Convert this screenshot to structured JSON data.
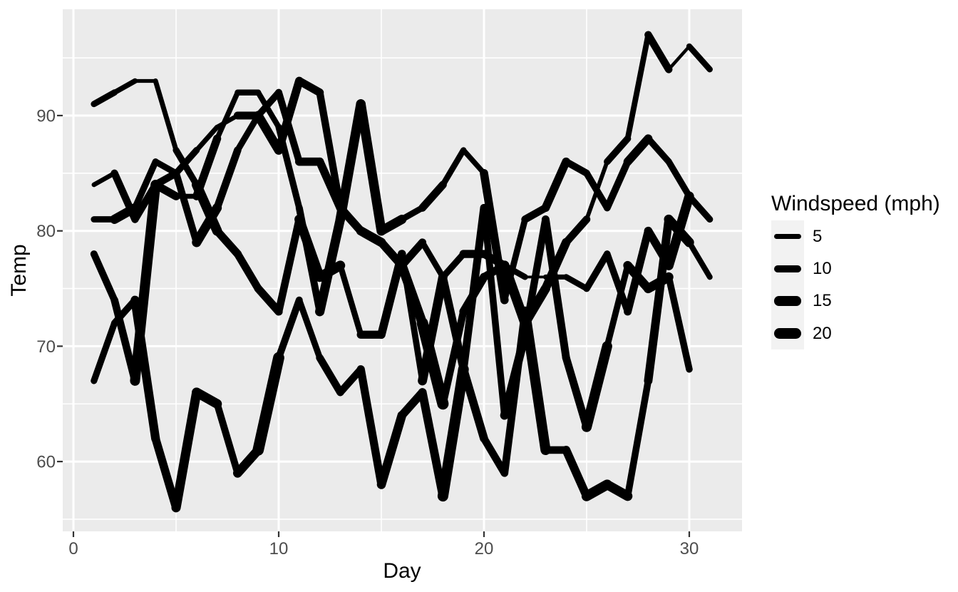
{
  "colors": {
    "background": "#FFFFFF",
    "panel_bg": "#EBEBEB",
    "grid": "#FFFFFF",
    "line": "#000000",
    "axis_text": "#4D4D4D",
    "tick_mark": "#333333",
    "legend_key_bg": "#F2F2F2"
  },
  "chart_data": {
    "type": "line",
    "title": "",
    "xlabel": "Day",
    "ylabel": "Temp",
    "x_ticks": [
      0,
      10,
      20,
      30
    ],
    "x_minor": [
      5,
      15,
      25
    ],
    "y_ticks": [
      60,
      70,
      80,
      90
    ],
    "y_minor": [
      55,
      65,
      75,
      85,
      95
    ],
    "xlim": [
      -0.52,
      32.57
    ],
    "ylim": [
      53.9,
      99.2
    ],
    "grid": true,
    "legend": {
      "title": "Windspeed (mph)",
      "position": "right",
      "entries": [
        5,
        10,
        15,
        20
      ]
    },
    "size_aesthetic": "windspeed_mph",
    "size_domain": [
      1.7,
      20.7
    ],
    "series": [
      {
        "name": "line-1",
        "day_start": 1,
        "temps": [
          67,
          72,
          74,
          62,
          56,
          66,
          65,
          59,
          61,
          69,
          74,
          69,
          66,
          68,
          58,
          64,
          66,
          57,
          68,
          62,
          59,
          73,
          61,
          61,
          57,
          58,
          57,
          67,
          81,
          79,
          76
        ],
        "winds": [
          7.4,
          8.0,
          12.6,
          11.5,
          14.3,
          14.9,
          8.6,
          13.8,
          20.1,
          8.6,
          6.9,
          9.7,
          9.2,
          10.9,
          13.2,
          11.5,
          12.0,
          18.4,
          11.5,
          9.7,
          9.7,
          16.6,
          9.7,
          12.0,
          16.6,
          14.9,
          8.0,
          12.0,
          14.9,
          5.7,
          7.4
        ]
      },
      {
        "name": "line-2",
        "day_start": 1,
        "temps": [
          78,
          74,
          67,
          84,
          85,
          79,
          82,
          87,
          90,
          87,
          93,
          92,
          82,
          80,
          79,
          77,
          72,
          65,
          73,
          76,
          77,
          76,
          76,
          76,
          75,
          78,
          73,
          80,
          77,
          83
        ],
        "winds": [
          8.6,
          9.7,
          16.1,
          9.2,
          8.6,
          14.3,
          9.7,
          6.9,
          13.8,
          11.5,
          10.9,
          9.2,
          8.0,
          13.8,
          11.5,
          14.9,
          20.7,
          9.2,
          11.5,
          10.3,
          6.3,
          1.7,
          4.6,
          6.3,
          8.0,
          8.0,
          10.3,
          11.5,
          14.9,
          8.0
        ]
      },
      {
        "name": "line-3",
        "day_start": 1,
        "temps": [
          84,
          85,
          81,
          84,
          83,
          83,
          88,
          92,
          92,
          89,
          82,
          73,
          81,
          91,
          80,
          81,
          82,
          84,
          87,
          85,
          74,
          81,
          82,
          86,
          85,
          82,
          86,
          88,
          86,
          83,
          81
        ],
        "winds": [
          4.1,
          9.2,
          9.2,
          10.9,
          4.6,
          10.9,
          5.1,
          6.3,
          5.7,
          7.4,
          8.6,
          14.3,
          14.9,
          14.9,
          14.3,
          6.9,
          10.3,
          6.3,
          5.1,
          11.5,
          6.9,
          9.7,
          11.5,
          8.6,
          8.0,
          8.6,
          12.0,
          7.4,
          7.4,
          7.4,
          9.2
        ]
      },
      {
        "name": "line-4",
        "day_start": 1,
        "temps": [
          81,
          81,
          82,
          86,
          85,
          87,
          89,
          90,
          90,
          92,
          86,
          86,
          82,
          80,
          79,
          77,
          79,
          76,
          78,
          78,
          77,
          72,
          75,
          79,
          81,
          86,
          88,
          97,
          94,
          96,
          94
        ],
        "winds": [
          6.9,
          13.8,
          7.4,
          6.9,
          7.4,
          4.6,
          4.0,
          10.3,
          8.0,
          8.6,
          11.5,
          11.5,
          11.5,
          9.7,
          11.5,
          10.3,
          6.3,
          7.4,
          10.9,
          10.3,
          15.5,
          14.3,
          12.6,
          9.7,
          3.4,
          8.0,
          5.7,
          9.7,
          2.3,
          6.3,
          6.3
        ]
      },
      {
        "name": "line-5",
        "day_start": 1,
        "temps": [
          91,
          92,
          93,
          93,
          87,
          84,
          80,
          78,
          75,
          73,
          81,
          76,
          77,
          71,
          71,
          78,
          67,
          76,
          68,
          82,
          64,
          71,
          81,
          69,
          63,
          70,
          77,
          75,
          76,
          68
        ],
        "winds": [
          6.9,
          5.1,
          2.8,
          4.6,
          7.4,
          15.5,
          10.9,
          10.3,
          10.9,
          9.7,
          14.9,
          15.5,
          6.3,
          10.9,
          11.5,
          6.9,
          13.8,
          10.3,
          10.3,
          8.0,
          12.6,
          9.2,
          10.3,
          10.3,
          16.6,
          6.9,
          13.2,
          14.3,
          8.0,
          11.5
        ]
      }
    ]
  }
}
